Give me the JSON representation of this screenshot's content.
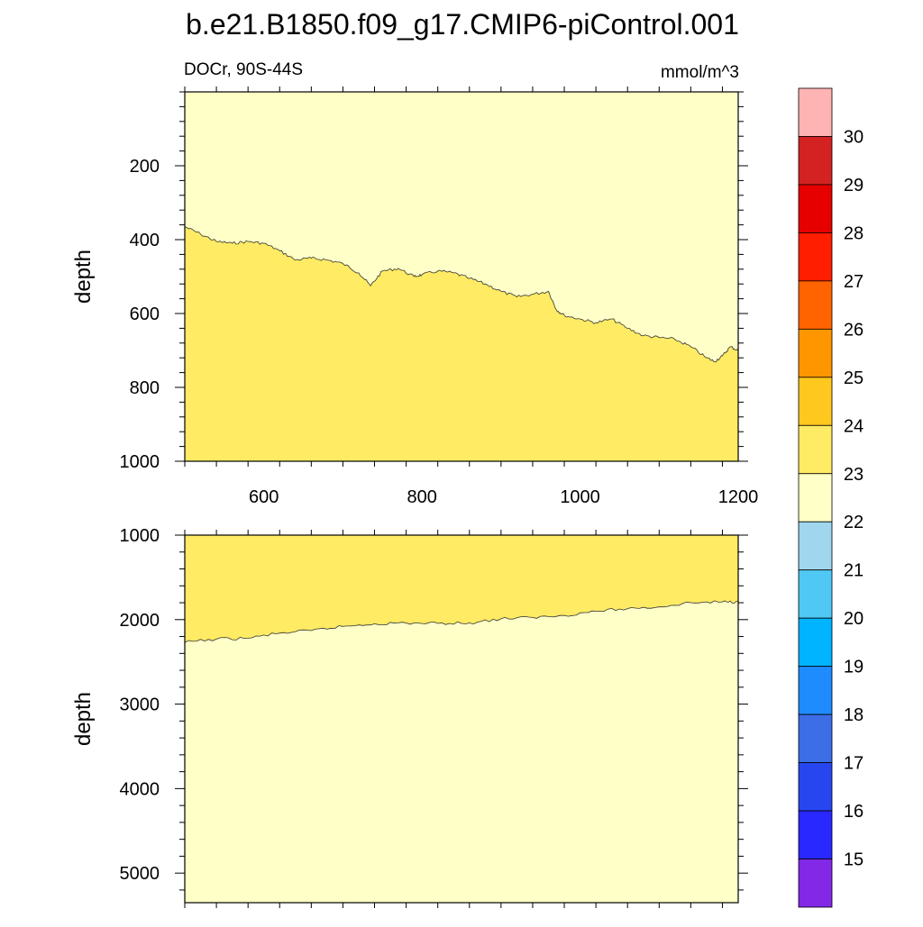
{
  "chart_data": {
    "type": "contour",
    "title": "b.e21.B1850.f09_g17.CMIP6-piControl.001",
    "left_label": "DOCr, 90S-44S",
    "right_label": "mmol/m^3",
    "x_range": [
      500,
      1200
    ],
    "x_ticks": [
      600,
      800,
      1000,
      1200
    ],
    "panels": [
      {
        "name": "upper",
        "ylabel": "depth",
        "y_range": [
          0,
          1000
        ],
        "y_ticks": [
          200,
          400,
          600,
          800,
          1000
        ],
        "upper_color": "#FFFFC8",
        "lower_color": "#FFEB64",
        "contour_level": 23,
        "contour_depth": [
          [
            500,
            365
          ],
          [
            520,
            385
          ],
          [
            540,
            405
          ],
          [
            560,
            410
          ],
          [
            580,
            405
          ],
          [
            600,
            410
          ],
          [
            620,
            430
          ],
          [
            640,
            455
          ],
          [
            660,
            450
          ],
          [
            680,
            455
          ],
          [
            700,
            465
          ],
          [
            720,
            490
          ],
          [
            735,
            525
          ],
          [
            750,
            485
          ],
          [
            770,
            478
          ],
          [
            790,
            500
          ],
          [
            800,
            495
          ],
          [
            820,
            485
          ],
          [
            840,
            490
          ],
          [
            860,
            505
          ],
          [
            880,
            520
          ],
          [
            900,
            540
          ],
          [
            920,
            555
          ],
          [
            940,
            548
          ],
          [
            960,
            540
          ],
          [
            970,
            590
          ],
          [
            980,
            605
          ],
          [
            1000,
            615
          ],
          [
            1020,
            625
          ],
          [
            1040,
            615
          ],
          [
            1060,
            640
          ],
          [
            1080,
            660
          ],
          [
            1100,
            665
          ],
          [
            1120,
            670
          ],
          [
            1140,
            690
          ],
          [
            1160,
            720
          ],
          [
            1170,
            730
          ],
          [
            1180,
            715
          ],
          [
            1190,
            690
          ],
          [
            1200,
            700
          ]
        ]
      },
      {
        "name": "lower",
        "ylabel": "depth",
        "y_range": [
          1000,
          5350
        ],
        "y_ticks": [
          1000,
          2000,
          3000,
          4000,
          5000
        ],
        "upper_color": "#FFEB64",
        "lower_color": "#FFFFC8",
        "contour_level": 23,
        "contour_depth": [
          [
            500,
            2270
          ],
          [
            540,
            2230
          ],
          [
            580,
            2220
          ],
          [
            620,
            2160
          ],
          [
            660,
            2130
          ],
          [
            700,
            2080
          ],
          [
            740,
            2050
          ],
          [
            780,
            2040
          ],
          [
            820,
            2045
          ],
          [
            860,
            2040
          ],
          [
            900,
            1990
          ],
          [
            940,
            1975
          ],
          [
            980,
            1950
          ],
          [
            1020,
            1900
          ],
          [
            1060,
            1870
          ],
          [
            1100,
            1850
          ],
          [
            1140,
            1800
          ],
          [
            1180,
            1790
          ],
          [
            1200,
            1790
          ]
        ]
      }
    ],
    "colorbar": {
      "labels": [
        15,
        16,
        17,
        18,
        19,
        20,
        21,
        22,
        23,
        24,
        25,
        26,
        27,
        28,
        29,
        30
      ],
      "colors": [
        "#FFB4B4",
        "#D42222",
        "#E60000",
        "#FF1E00",
        "#FF6400",
        "#FF9600",
        "#FFC81E",
        "#FFEB64",
        "#FFFFC8",
        "#A0D6EE",
        "#50C8F5",
        "#00B4FF",
        "#1E8CFF",
        "#3C6EE6",
        "#2846F0",
        "#2828FF",
        "#8228E6"
      ]
    }
  }
}
